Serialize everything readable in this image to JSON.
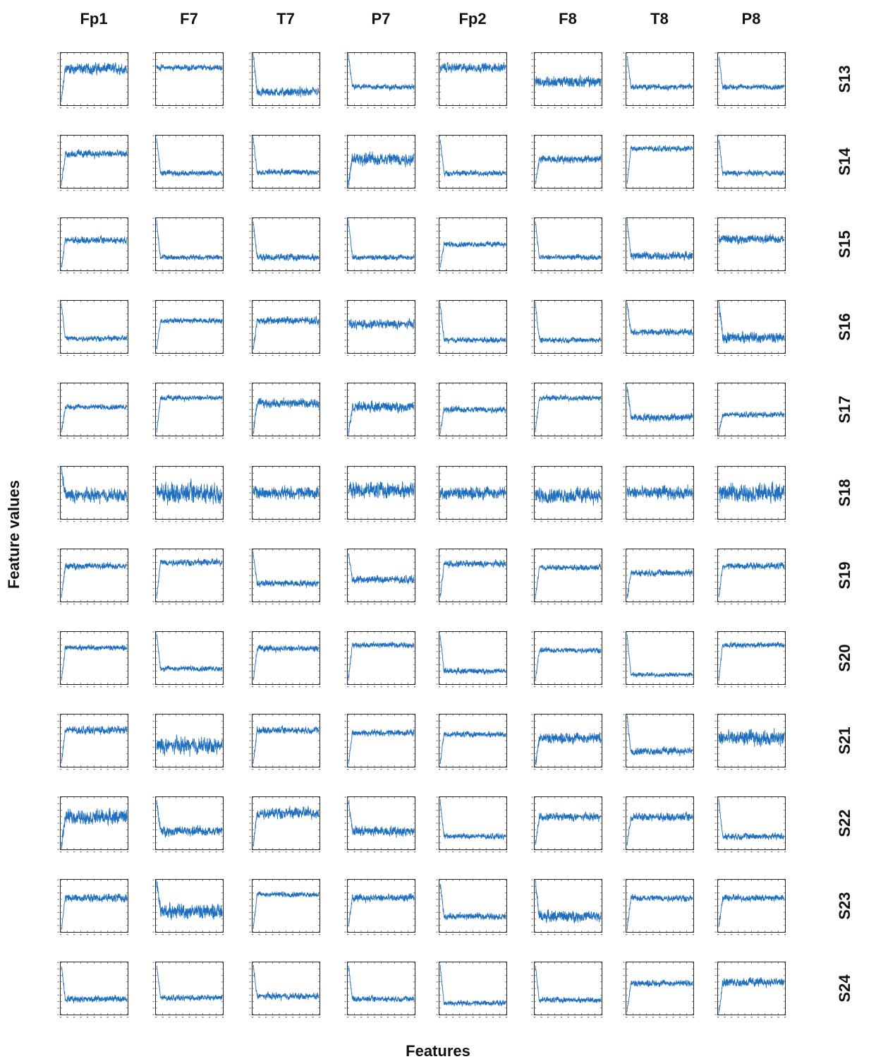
{
  "chart_data": {
    "type": "line",
    "xlabel": "Features",
    "ylabel": "Feature values",
    "columns": [
      "Fp1",
      "F7",
      "T7",
      "P7",
      "Fp2",
      "F8",
      "T8",
      "P8"
    ],
    "rows": [
      "S13",
      "S14",
      "S15",
      "S16",
      "S17",
      "S18",
      "S19",
      "S20",
      "S21",
      "S22",
      "S23",
      "S24"
    ],
    "series_color": "#1f6fbf",
    "panel_style": "small multiples, one noisy feature-value trace per subject and channel",
    "panels": [
      [
        {
          "base": 0.7,
          "noise": 0.1,
          "init": "down"
        },
        {
          "base": 0.72,
          "noise": 0.05,
          "init": "none"
        },
        {
          "base": 0.25,
          "noise": 0.08,
          "init": "up"
        },
        {
          "base": 0.35,
          "noise": 0.05,
          "init": "up"
        },
        {
          "base": 0.72,
          "noise": 0.08,
          "init": "none"
        },
        {
          "base": 0.45,
          "noise": 0.1,
          "init": "none"
        },
        {
          "base": 0.35,
          "noise": 0.05,
          "init": "up"
        },
        {
          "base": 0.35,
          "noise": 0.05,
          "init": "up"
        }
      ],
      [
        {
          "base": 0.65,
          "noise": 0.07,
          "init": "down"
        },
        {
          "base": 0.28,
          "noise": 0.05,
          "init": "up"
        },
        {
          "base": 0.3,
          "noise": 0.05,
          "init": "up"
        },
        {
          "base": 0.55,
          "noise": 0.12,
          "init": "down"
        },
        {
          "base": 0.28,
          "noise": 0.05,
          "init": "up"
        },
        {
          "base": 0.55,
          "noise": 0.07,
          "init": "down"
        },
        {
          "base": 0.75,
          "noise": 0.05,
          "init": "down"
        },
        {
          "base": 0.28,
          "noise": 0.05,
          "init": "up"
        }
      ],
      [
        {
          "base": 0.58,
          "noise": 0.06,
          "init": "down"
        },
        {
          "base": 0.25,
          "noise": 0.05,
          "init": "up"
        },
        {
          "base": 0.25,
          "noise": 0.06,
          "init": "up"
        },
        {
          "base": 0.25,
          "noise": 0.05,
          "init": "up"
        },
        {
          "base": 0.5,
          "noise": 0.05,
          "init": "down"
        },
        {
          "base": 0.25,
          "noise": 0.05,
          "init": "up"
        },
        {
          "base": 0.28,
          "noise": 0.07,
          "init": "up"
        },
        {
          "base": 0.6,
          "noise": 0.08,
          "init": "none"
        }
      ],
      [
        {
          "base": 0.28,
          "noise": 0.05,
          "init": "up"
        },
        {
          "base": 0.62,
          "noise": 0.05,
          "init": "down"
        },
        {
          "base": 0.62,
          "noise": 0.07,
          "init": "down"
        },
        {
          "base": 0.55,
          "noise": 0.08,
          "init": "none"
        },
        {
          "base": 0.25,
          "noise": 0.05,
          "init": "up"
        },
        {
          "base": 0.25,
          "noise": 0.05,
          "init": "up"
        },
        {
          "base": 0.4,
          "noise": 0.06,
          "init": "up"
        },
        {
          "base": 0.3,
          "noise": 0.1,
          "init": "up"
        }
      ],
      [
        {
          "base": 0.55,
          "noise": 0.05,
          "init": "down"
        },
        {
          "base": 0.72,
          "noise": 0.05,
          "init": "down"
        },
        {
          "base": 0.62,
          "noise": 0.08,
          "init": "down"
        },
        {
          "base": 0.55,
          "noise": 0.09,
          "init": "down"
        },
        {
          "base": 0.5,
          "noise": 0.06,
          "init": "down"
        },
        {
          "base": 0.72,
          "noise": 0.05,
          "init": "down"
        },
        {
          "base": 0.35,
          "noise": 0.07,
          "init": "up"
        },
        {
          "base": 0.4,
          "noise": 0.05,
          "init": "down"
        }
      ],
      [
        {
          "base": 0.45,
          "noise": 0.12,
          "init": "up"
        },
        {
          "base": 0.5,
          "noise": 0.18,
          "init": "none"
        },
        {
          "base": 0.5,
          "noise": 0.12,
          "init": "none"
        },
        {
          "base": 0.55,
          "noise": 0.14,
          "init": "none"
        },
        {
          "base": 0.5,
          "noise": 0.12,
          "init": "none"
        },
        {
          "base": 0.45,
          "noise": 0.14,
          "init": "none"
        },
        {
          "base": 0.5,
          "noise": 0.12,
          "init": "none"
        },
        {
          "base": 0.5,
          "noise": 0.16,
          "init": "none"
        }
      ],
      [
        {
          "base": 0.68,
          "noise": 0.06,
          "init": "down"
        },
        {
          "base": 0.75,
          "noise": 0.06,
          "init": "down"
        },
        {
          "base": 0.35,
          "noise": 0.06,
          "init": "up"
        },
        {
          "base": 0.42,
          "noise": 0.07,
          "init": "up"
        },
        {
          "base": 0.72,
          "noise": 0.06,
          "init": "down"
        },
        {
          "base": 0.65,
          "noise": 0.05,
          "init": "down"
        },
        {
          "base": 0.55,
          "noise": 0.06,
          "init": "down"
        },
        {
          "base": 0.68,
          "noise": 0.06,
          "init": "down"
        }
      ],
      [
        {
          "base": 0.7,
          "noise": 0.05,
          "init": "down"
        },
        {
          "base": 0.3,
          "noise": 0.05,
          "init": "up"
        },
        {
          "base": 0.68,
          "noise": 0.06,
          "init": "down"
        },
        {
          "base": 0.75,
          "noise": 0.05,
          "init": "down"
        },
        {
          "base": 0.25,
          "noise": 0.05,
          "init": "up"
        },
        {
          "base": 0.65,
          "noise": 0.05,
          "init": "down"
        },
        {
          "base": 0.18,
          "noise": 0.04,
          "init": "up"
        },
        {
          "base": 0.75,
          "noise": 0.05,
          "init": "down"
        }
      ],
      [
        {
          "base": 0.7,
          "noise": 0.07,
          "init": "down"
        },
        {
          "base": 0.4,
          "noise": 0.15,
          "init": "none"
        },
        {
          "base": 0.7,
          "noise": 0.06,
          "init": "down"
        },
        {
          "base": 0.65,
          "noise": 0.06,
          "init": "down"
        },
        {
          "base": 0.62,
          "noise": 0.05,
          "init": "down"
        },
        {
          "base": 0.55,
          "noise": 0.1,
          "init": "down"
        },
        {
          "base": 0.3,
          "noise": 0.07,
          "init": "up"
        },
        {
          "base": 0.55,
          "noise": 0.14,
          "init": "none"
        }
      ],
      [
        {
          "base": 0.62,
          "noise": 0.13,
          "init": "down"
        },
        {
          "base": 0.35,
          "noise": 0.09,
          "init": "up"
        },
        {
          "base": 0.7,
          "noise": 0.1,
          "init": "down"
        },
        {
          "base": 0.35,
          "noise": 0.09,
          "init": "up"
        },
        {
          "base": 0.25,
          "noise": 0.05,
          "init": "up"
        },
        {
          "base": 0.62,
          "noise": 0.07,
          "init": "down"
        },
        {
          "base": 0.62,
          "noise": 0.07,
          "init": "down"
        },
        {
          "base": 0.25,
          "noise": 0.06,
          "init": "up"
        }
      ],
      [
        {
          "base": 0.65,
          "noise": 0.07,
          "init": "down"
        },
        {
          "base": 0.4,
          "noise": 0.14,
          "init": "up"
        },
        {
          "base": 0.72,
          "noise": 0.05,
          "init": "down"
        },
        {
          "base": 0.65,
          "noise": 0.07,
          "init": "down"
        },
        {
          "base": 0.3,
          "noise": 0.06,
          "init": "up"
        },
        {
          "base": 0.3,
          "noise": 0.1,
          "init": "up"
        },
        {
          "base": 0.65,
          "noise": 0.06,
          "init": "down"
        },
        {
          "base": 0.65,
          "noise": 0.06,
          "init": "down"
        }
      ],
      [
        {
          "base": 0.3,
          "noise": 0.06,
          "init": "up"
        },
        {
          "base": 0.32,
          "noise": 0.05,
          "init": "up"
        },
        {
          "base": 0.35,
          "noise": 0.06,
          "init": "up"
        },
        {
          "base": 0.3,
          "noise": 0.05,
          "init": "up"
        },
        {
          "base": 0.22,
          "noise": 0.05,
          "init": "up"
        },
        {
          "base": 0.28,
          "noise": 0.05,
          "init": "up"
        },
        {
          "base": 0.6,
          "noise": 0.06,
          "init": "down"
        },
        {
          "base": 0.62,
          "noise": 0.08,
          "init": "down"
        }
      ]
    ]
  }
}
